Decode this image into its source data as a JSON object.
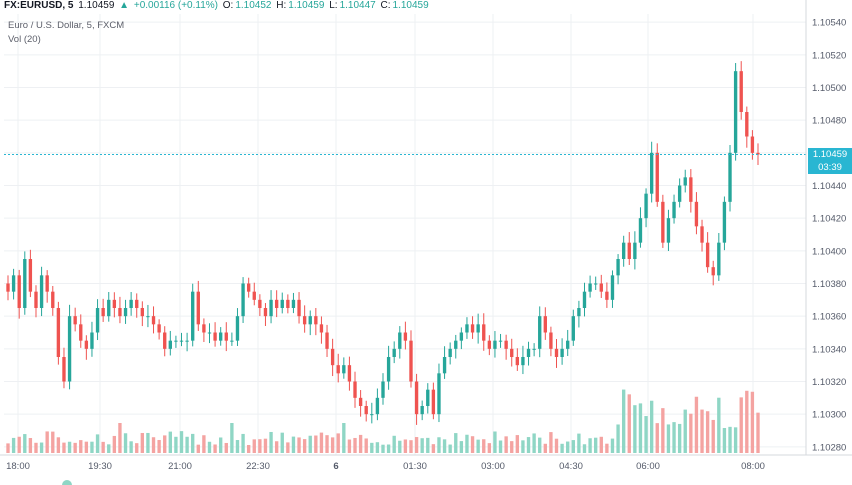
{
  "header": {
    "symbol": "FX:EURUSD, 5",
    "last": "1.10459",
    "change_arrow": "▲",
    "change": "+0.00116 (+0.11%)",
    "o_label": "O:",
    "o": "1.10452",
    "h_label": "H:",
    "h": "1.10459",
    "l_label": "L:",
    "l": "1.10447",
    "c_label": "C:",
    "c": "1.10459"
  },
  "legend": {
    "series_title": "Euro / U.S. Dollar, 5, FXCM",
    "volume_title": "Vol (20)"
  },
  "price_axis": {
    "labels": [
      "1.10540",
      "1.10520",
      "1.10500",
      "1.10480",
      "1.10460",
      "1.10440",
      "1.10420",
      "1.10400",
      "1.10380",
      "1.10360",
      "1.10340",
      "1.10320",
      "1.10300",
      "1.10280"
    ],
    "current_price": "1.10459",
    "countdown": "03:39"
  },
  "time_axis": {
    "labels": [
      "18:00",
      "19:30",
      "21:00",
      "22:30",
      "6",
      "01:30",
      "03:00",
      "04:30",
      "06:00",
      "08:00"
    ]
  },
  "colors": {
    "up": "#26a69a",
    "down": "#ef5350",
    "up_vol": "#8fd6c5",
    "down_vol": "#f4a3a1",
    "grid": "#eef0f3",
    "price_line": "#29b6d2"
  },
  "chart_data": {
    "type": "candlestick",
    "title": "Euro / U.S. Dollar, 5, FXCM",
    "timeframe": "5 minute",
    "ylim": [
      1.10275,
      1.10545
    ],
    "y_ticks": [
      1.1054,
      1.1052,
      1.105,
      1.1048,
      1.1046,
      1.1044,
      1.1042,
      1.104,
      1.1038,
      1.1036,
      1.1034,
      1.1032,
      1.103,
      1.1028
    ],
    "x_ticks": [
      "18:00",
      "19:30",
      "21:00",
      "22:30",
      "6",
      "01:30",
      "03:00",
      "04:30",
      "06:00",
      "08:00"
    ],
    "current_price": 1.10459,
    "candles": [
      {
        "c": 1.10375
      },
      {
        "c": 1.10385
      },
      {
        "c": 1.10365
      },
      {
        "c": 1.10395
      },
      {
        "c": 1.10375
      },
      {
        "c": 1.10365
      },
      {
        "c": 1.10385
      },
      {
        "c": 1.10375
      },
      {
        "c": 1.10365
      },
      {
        "c": 1.10335
      },
      {
        "c": 1.1032
      },
      {
        "c": 1.1036
      },
      {
        "c": 1.10355
      },
      {
        "c": 1.10345
      },
      {
        "c": 1.1034
      },
      {
        "c": 1.1035
      },
      {
        "c": 1.10365
      },
      {
        "c": 1.1036
      },
      {
        "c": 1.1037
      },
      {
        "c": 1.10365
      },
      {
        "c": 1.1036
      },
      {
        "c": 1.10365
      },
      {
        "c": 1.1037
      },
      {
        "c": 1.10365
      },
      {
        "c": 1.1036
      },
      {
        "c": 1.1036
      },
      {
        "c": 1.10355
      },
      {
        "c": 1.1035
      },
      {
        "c": 1.1034
      },
      {
        "c": 1.10345
      },
      {
        "c": 1.10345
      },
      {
        "c": 1.10345
      },
      {
        "c": 1.10345
      },
      {
        "c": 1.10375
      },
      {
        "c": 1.10355
      },
      {
        "c": 1.1035
      },
      {
        "c": 1.1035
      },
      {
        "c": 1.10345
      },
      {
        "c": 1.1035
      },
      {
        "c": 1.10345
      },
      {
        "c": 1.10345
      },
      {
        "c": 1.1036
      },
      {
        "c": 1.1038
      },
      {
        "c": 1.10375
      },
      {
        "c": 1.1037
      },
      {
        "c": 1.10365
      },
      {
        "c": 1.1036
      },
      {
        "c": 1.1037
      },
      {
        "c": 1.10365
      },
      {
        "c": 1.1037
      },
      {
        "c": 1.10365
      },
      {
        "c": 1.1037
      },
      {
        "c": 1.1036
      },
      {
        "c": 1.10355
      },
      {
        "c": 1.1036
      },
      {
        "c": 1.10355
      },
      {
        "c": 1.1035
      },
      {
        "c": 1.1034
      },
      {
        "c": 1.1033
      },
      {
        "c": 1.10325
      },
      {
        "c": 1.1033
      },
      {
        "c": 1.1032
      },
      {
        "c": 1.1031
      },
      {
        "c": 1.10305
      },
      {
        "c": 1.103
      },
      {
        "c": 1.103
      },
      {
        "c": 1.1031
      },
      {
        "c": 1.1032
      },
      {
        "c": 1.10335
      },
      {
        "c": 1.1034
      },
      {
        "c": 1.1035
      },
      {
        "c": 1.10345
      },
      {
        "c": 1.1032
      },
      {
        "c": 1.103
      },
      {
        "c": 1.10305
      },
      {
        "c": 1.10315
      },
      {
        "c": 1.103
      },
      {
        "c": 1.10325
      },
      {
        "c": 1.10335
      },
      {
        "c": 1.1034
      },
      {
        "c": 1.10345
      },
      {
        "c": 1.1035
      },
      {
        "c": 1.10355
      },
      {
        "c": 1.1035
      },
      {
        "c": 1.10355
      },
      {
        "c": 1.10345
      },
      {
        "c": 1.1034
      },
      {
        "c": 1.10345
      },
      {
        "c": 1.10345
      },
      {
        "c": 1.1034
      },
      {
        "c": 1.10335
      },
      {
        "c": 1.1033
      },
      {
        "c": 1.10335
      },
      {
        "c": 1.1034
      },
      {
        "c": 1.1034
      },
      {
        "c": 1.1036
      },
      {
        "c": 1.1035
      },
      {
        "c": 1.1034
      },
      {
        "c": 1.10335
      },
      {
        "c": 1.1034
      },
      {
        "c": 1.10345
      },
      {
        "c": 1.1036
      },
      {
        "c": 1.10365
      },
      {
        "c": 1.10375
      },
      {
        "c": 1.1038
      },
      {
        "c": 1.1038
      },
      {
        "c": 1.10375
      },
      {
        "c": 1.1037
      },
      {
        "c": 1.10385
      },
      {
        "c": 1.10395
      },
      {
        "c": 1.10405
      },
      {
        "c": 1.10395
      },
      {
        "c": 1.10405
      },
      {
        "c": 1.1042
      },
      {
        "c": 1.10435
      },
      {
        "c": 1.1046
      },
      {
        "c": 1.1043
      },
      {
        "c": 1.10405
      },
      {
        "c": 1.1042
      },
      {
        "c": 1.1043
      },
      {
        "c": 1.1044
      },
      {
        "c": 1.10445
      },
      {
        "c": 1.1043
      },
      {
        "c": 1.10415
      },
      {
        "c": 1.10405
      },
      {
        "c": 1.1039
      },
      {
        "c": 1.10385
      },
      {
        "c": 1.10405
      },
      {
        "c": 1.1043
      },
      {
        "c": 1.1046
      },
      {
        "c": 1.1051
      },
      {
        "c": 1.10485
      },
      {
        "c": 1.1047
      },
      {
        "c": 1.1046
      },
      {
        "c": 1.10459
      }
    ],
    "volume": {
      "title": "Vol (20)",
      "note": "volume histogram shown beneath price series, heights relative"
    }
  }
}
